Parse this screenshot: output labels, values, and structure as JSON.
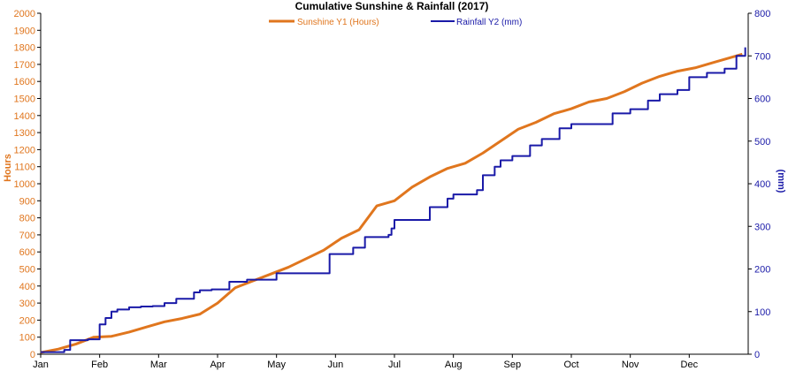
{
  "chart_data": {
    "type": "line",
    "title": "Cumulative Sunshine & Rainfall (2017)",
    "xlabel": "",
    "x_ticks": [
      "Jan",
      "Feb",
      "Mar",
      "Apr",
      "May",
      "Jun",
      "Jul",
      "Aug",
      "Sep",
      "Oct",
      "Nov",
      "Dec"
    ],
    "y1": {
      "label": "Hours",
      "lim": [
        0,
        2000
      ],
      "ticks": [
        0,
        100,
        200,
        300,
        400,
        500,
        600,
        700,
        800,
        900,
        1000,
        1100,
        1200,
        1300,
        1400,
        1500,
        1600,
        1700,
        1800,
        1900,
        2000
      ],
      "color": "#E0761E"
    },
    "y2": {
      "label": "(mm)",
      "lim": [
        0,
        800
      ],
      "ticks": [
        0,
        100,
        200,
        300,
        400,
        500,
        600,
        700,
        800
      ],
      "color": "#1A1AA8"
    },
    "legend": "top-center",
    "grid": false,
    "series": [
      {
        "name": "Sunshine Y1 (Hours)",
        "axis": "y1",
        "color": "#E0761E",
        "x_months": [
          0,
          0.3,
          0.6,
          0.9,
          1.2,
          1.5,
          1.8,
          2.1,
          2.4,
          2.7,
          3.0,
          3.3,
          3.6,
          3.9,
          4.2,
          4.5,
          4.8,
          5.1,
          5.4,
          5.7,
          6.0,
          6.3,
          6.6,
          6.9,
          7.2,
          7.5,
          7.8,
          8.1,
          8.4,
          8.7,
          9.0,
          9.3,
          9.6,
          9.9,
          10.2,
          10.5,
          10.8,
          11.1,
          11.4,
          11.7,
          11.9
        ],
        "values": [
          10,
          30,
          60,
          100,
          105,
          130,
          160,
          190,
          210,
          235,
          300,
          390,
          430,
          470,
          510,
          560,
          610,
          680,
          730,
          870,
          900,
          980,
          1040,
          1090,
          1120,
          1180,
          1250,
          1320,
          1360,
          1410,
          1440,
          1480,
          1500,
          1540,
          1590,
          1630,
          1660,
          1680,
          1710,
          1740,
          1760
        ]
      },
      {
        "name": "Rainfall Y2 (mm)",
        "axis": "y2",
        "color": "#1A1AA8",
        "x_months": [
          0,
          0.2,
          0.4,
          0.5,
          0.8,
          0.9,
          1.0,
          1.1,
          1.2,
          1.3,
          1.4,
          1.5,
          1.7,
          1.9,
          2.0,
          2.1,
          2.3,
          2.6,
          2.7,
          2.9,
          3.0,
          3.2,
          3.5,
          4.0,
          4.4,
          4.5,
          4.8,
          4.9,
          5.0,
          5.3,
          5.5,
          5.9,
          5.95,
          6.0,
          6.5,
          6.6,
          6.8,
          6.9,
          7.0,
          7.2,
          7.4,
          7.5,
          7.7,
          7.8,
          8.0,
          8.3,
          8.5,
          8.8,
          9.0,
          9.5,
          9.7,
          10.0,
          10.3,
          10.5,
          10.8,
          11.0,
          11.3,
          11.6,
          11.8,
          11.95
        ],
        "values": [
          5,
          5,
          10,
          33,
          35,
          35,
          70,
          85,
          100,
          105,
          105,
          110,
          112,
          113,
          113,
          120,
          130,
          145,
          150,
          152,
          152,
          170,
          175,
          190,
          190,
          190,
          190,
          235,
          235,
          250,
          275,
          280,
          295,
          315,
          315,
          345,
          345,
          365,
          375,
          375,
          385,
          420,
          440,
          455,
          465,
          490,
          505,
          530,
          540,
          540,
          565,
          575,
          595,
          610,
          620,
          650,
          660,
          670,
          700,
          720
        ]
      }
    ]
  }
}
